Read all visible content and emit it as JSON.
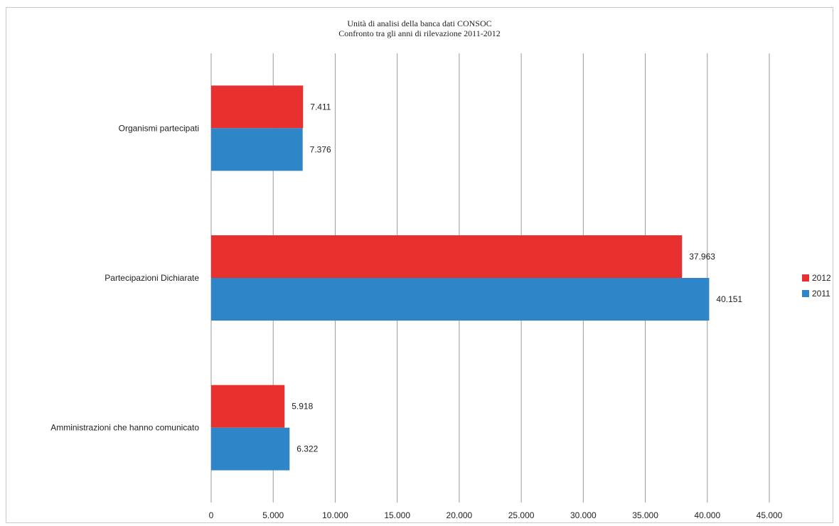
{
  "chart_data": {
    "type": "bar",
    "orientation": "horizontal",
    "title": "Unità di analisi della banca dati CONSOC",
    "subtitle": "Confronto tra gli anni di rilevazione 2011-2012",
    "categories": [
      "Organismi partecipati",
      "Partecipazioni Dichiarate",
      "Amministrazioni che hanno comunicato"
    ],
    "series": [
      {
        "name": "2012",
        "color": "#e8312f",
        "values": [
          7411,
          37963,
          5918
        ],
        "labels": [
          "7.411",
          "37.963",
          "5.918"
        ]
      },
      {
        "name": "2011",
        "color": "#2e86c8",
        "values": [
          7376,
          40151,
          6322
        ],
        "labels": [
          "7.376",
          "40.151",
          "6.322"
        ]
      }
    ],
    "xlim": [
      0,
      45000
    ],
    "xticks": [
      {
        "value": 0,
        "label": "0"
      },
      {
        "value": 5000,
        "label": "5.000"
      },
      {
        "value": 10000,
        "label": "10.000"
      },
      {
        "value": 15000,
        "label": "15.000"
      },
      {
        "value": 20000,
        "label": "20.000"
      },
      {
        "value": 25000,
        "label": "25.000"
      },
      {
        "value": 30000,
        "label": "30.000"
      },
      {
        "value": 35000,
        "label": "35.000"
      },
      {
        "value": 40000,
        "label": "40.000"
      },
      {
        "value": 45000,
        "label": "45.000"
      }
    ],
    "grid": true,
    "legend_position": "right"
  }
}
